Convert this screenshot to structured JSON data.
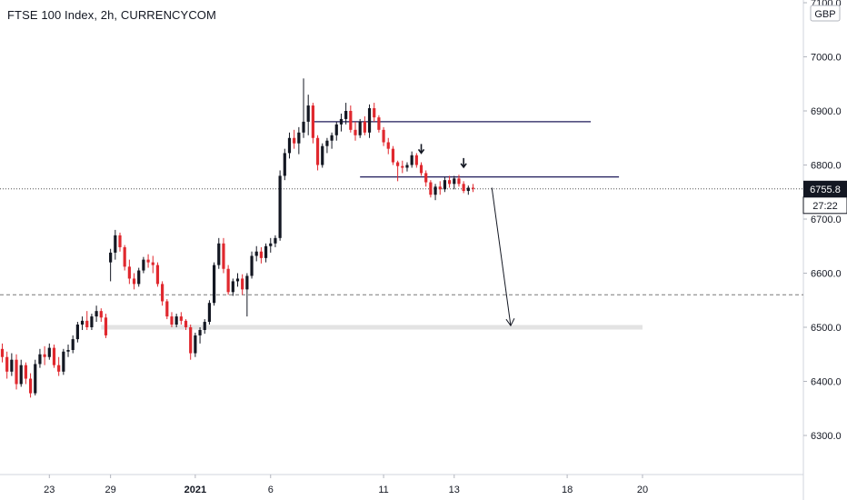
{
  "header": {
    "title": "FTSE 100 Index, 2h, CURRENCYCOM"
  },
  "chart_data": {
    "type": "candlestick",
    "currency": "GBP",
    "ylim": [
      6220,
      7110
    ],
    "y_ticks": [
      {
        "value": 6300,
        "label": "6300.0"
      },
      {
        "value": 6400,
        "label": "6400.0"
      },
      {
        "value": 6500,
        "label": "6500.0"
      },
      {
        "value": 6600,
        "label": "6600.0"
      },
      {
        "value": 6700,
        "label": "6700.0"
      },
      {
        "value": 6800,
        "label": "6800.0"
      },
      {
        "value": 6900,
        "label": "6900.0"
      },
      {
        "value": 7000,
        "label": "7000.0"
      },
      {
        "value": 7100,
        "label": "7100.0"
      }
    ],
    "x_ticks": [
      {
        "bar": 10,
        "label": "23",
        "bold": false
      },
      {
        "bar": 23,
        "label": "29",
        "bold": false
      },
      {
        "bar": 41,
        "label": "2021",
        "bold": true
      },
      {
        "bar": 57,
        "label": "6",
        "bold": false
      },
      {
        "bar": 81,
        "label": "11",
        "bold": false
      },
      {
        "bar": 96,
        "label": "13",
        "bold": false
      },
      {
        "bar": 120,
        "label": "18",
        "bold": false
      },
      {
        "bar": 136,
        "label": "20",
        "bold": false
      }
    ],
    "last_price": {
      "value": 6755.8,
      "label": "6755.8",
      "countdown": "27:22"
    },
    "colors": {
      "up": "#131722",
      "down": "#e0282e",
      "level_line": "#1e1a5a",
      "dashed_line": "#787878",
      "zone": "#e3e3e3",
      "arrow": "#131722"
    },
    "annotations": {
      "resistance_line": {
        "value": 6880,
        "from_bar": 66,
        "to_bar": 125
      },
      "support_line": {
        "value": 6778,
        "from_bar": 76,
        "to_bar": 131
      },
      "dashed_level": {
        "value": 6560
      },
      "target_zone": {
        "value": 6500,
        "from_bar": 21,
        "to_bar": 136
      },
      "down_arrows": [
        {
          "bar": 89,
          "value": 6822
        },
        {
          "bar": 98,
          "value": 6796
        }
      ],
      "projection_arrow": {
        "from_bar": 104,
        "from_value": 6758,
        "to_bar": 108,
        "to_value": 6503
      }
    },
    "candles": [
      [
        6460,
        6470,
        6435,
        6445
      ],
      [
        6445,
        6455,
        6405,
        6418
      ],
      [
        6418,
        6452,
        6410,
        6440
      ],
      [
        6440,
        6450,
        6385,
        6395
      ],
      [
        6395,
        6440,
        6390,
        6430
      ],
      [
        6430,
        6435,
        6395,
        6405
      ],
      [
        6405,
        6415,
        6370,
        6378
      ],
      [
        6378,
        6440,
        6374,
        6432
      ],
      [
        6432,
        6460,
        6425,
        6450
      ],
      [
        6450,
        6465,
        6430,
        6445
      ],
      [
        6445,
        6470,
        6440,
        6462
      ],
      [
        6462,
        6468,
        6425,
        6430
      ],
      [
        6430,
        6445,
        6410,
        6418
      ],
      [
        6418,
        6460,
        6412,
        6455
      ],
      [
        6455,
        6468,
        6445,
        6458
      ],
      [
        6458,
        6485,
        6452,
        6478
      ],
      [
        6478,
        6510,
        6472,
        6505
      ],
      [
        6505,
        6520,
        6495,
        6512
      ],
      [
        6512,
        6530,
        6495,
        6500
      ],
      [
        6500,
        6525,
        6495,
        6520
      ],
      [
        6520,
        6540,
        6510,
        6530
      ],
      [
        6530,
        6535,
        6510,
        6518
      ],
      [
        6518,
        6525,
        6480,
        6485
      ],
      [
        6620,
        6645,
        6585,
        6638
      ],
      [
        6638,
        6680,
        6625,
        6670
      ],
      [
        6670,
        6675,
        6640,
        6648
      ],
      [
        6648,
        6652,
        6605,
        6612
      ],
      [
        6612,
        6625,
        6580,
        6590
      ],
      [
        6590,
        6600,
        6570,
        6580
      ],
      [
        6580,
        6610,
        6575,
        6605
      ],
      [
        6605,
        6630,
        6600,
        6625
      ],
      [
        6625,
        6635,
        6610,
        6620
      ],
      [
        6620,
        6632,
        6600,
        6615
      ],
      [
        6615,
        6620,
        6575,
        6580
      ],
      [
        6580,
        6585,
        6540,
        6548
      ],
      [
        6548,
        6552,
        6515,
        6520
      ],
      [
        6520,
        6528,
        6500,
        6505
      ],
      [
        6505,
        6525,
        6500,
        6520
      ],
      [
        6520,
        6528,
        6505,
        6512
      ],
      [
        6512,
        6515,
        6495,
        6500
      ],
      [
        6500,
        6505,
        6440,
        6452
      ],
      [
        6452,
        6490,
        6445,
        6485
      ],
      [
        6485,
        6500,
        6470,
        6495
      ],
      [
        6495,
        6515,
        6488,
        6510
      ],
      [
        6510,
        6550,
        6505,
        6545
      ],
      [
        6545,
        6620,
        6540,
        6615
      ],
      [
        6615,
        6665,
        6608,
        6655
      ],
      [
        6655,
        6665,
        6600,
        6608
      ],
      [
        6608,
        6615,
        6560,
        6565
      ],
      [
        6565,
        6590,
        6558,
        6585
      ],
      [
        6585,
        6600,
        6575,
        6590
      ],
      [
        6590,
        6598,
        6560,
        6570
      ],
      [
        6570,
        6600,
        6520,
        6595
      ],
      [
        6595,
        6640,
        6590,
        6632
      ],
      [
        6632,
        6650,
        6622,
        6640
      ],
      [
        6640,
        6648,
        6618,
        6628
      ],
      [
        6628,
        6655,
        6620,
        6650
      ],
      [
        6650,
        6665,
        6638,
        6655
      ],
      [
        6655,
        6670,
        6648,
        6665
      ],
      [
        6665,
        6790,
        6660,
        6780
      ],
      [
        6780,
        6830,
        6772,
        6822
      ],
      [
        6822,
        6860,
        6812,
        6850
      ],
      [
        6850,
        6865,
        6830,
        6840
      ],
      [
        6840,
        6870,
        6820,
        6860
      ],
      [
        6860,
        6960,
        6850,
        6880
      ],
      [
        6880,
        6930,
        6855,
        6910
      ],
      [
        6910,
        6915,
        6840,
        6850
      ],
      [
        6850,
        6855,
        6790,
        6800
      ],
      [
        6800,
        6840,
        6795,
        6835
      ],
      [
        6835,
        6850,
        6822,
        6845
      ],
      [
        6845,
        6860,
        6830,
        6855
      ],
      [
        6855,
        6880,
        6845,
        6875
      ],
      [
        6875,
        6895,
        6862,
        6885
      ],
      [
        6885,
        6915,
        6875,
        6900
      ],
      [
        6900,
        6910,
        6860,
        6865
      ],
      [
        6865,
        6880,
        6845,
        6855
      ],
      [
        6855,
        6885,
        6850,
        6880
      ],
      [
        6880,
        6890,
        6855,
        6860
      ],
      [
        6860,
        6912,
        6850,
        6905
      ],
      [
        6905,
        6915,
        6880,
        6888
      ],
      [
        6888,
        6892,
        6860,
        6865
      ],
      [
        6865,
        6870,
        6835,
        6842
      ],
      [
        6842,
        6850,
        6820,
        6830
      ],
      [
        6830,
        6835,
        6800,
        6805
      ],
      [
        6805,
        6808,
        6770,
        6798
      ],
      [
        6798,
        6808,
        6785,
        6795
      ],
      [
        6795,
        6805,
        6788,
        6800
      ],
      [
        6800,
        6825,
        6795,
        6818
      ],
      [
        6818,
        6822,
        6795,
        6800
      ],
      [
        6800,
        6805,
        6780,
        6785
      ],
      [
        6785,
        6790,
        6760,
        6768
      ],
      [
        6768,
        6772,
        6740,
        6745
      ],
      [
        6745,
        6765,
        6735,
        6760
      ],
      [
        6760,
        6770,
        6745,
        6755
      ],
      [
        6755,
        6778,
        6750,
        6772
      ],
      [
        6772,
        6780,
        6758,
        6765
      ],
      [
        6765,
        6780,
        6755,
        6775
      ],
      [
        6775,
        6782,
        6760,
        6765
      ],
      [
        6765,
        6770,
        6748,
        6752
      ],
      [
        6752,
        6762,
        6745,
        6758
      ],
      [
        6758,
        6765,
        6750,
        6756
      ]
    ]
  }
}
